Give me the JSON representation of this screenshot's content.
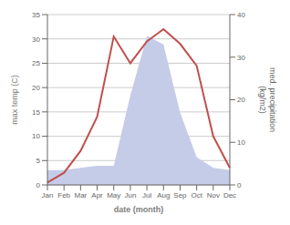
{
  "chart_data": {
    "type": "line",
    "categories": [
      "Jan",
      "Feb",
      "Mar",
      "Apr",
      "May",
      "Jun",
      "Jul",
      "Aug",
      "Sep",
      "Oct",
      "Nov",
      "Dec"
    ],
    "series": [
      {
        "type": "area",
        "axis": "y2",
        "color": "#c5cce8",
        "values": [
          3.5,
          3.5,
          4.0,
          4.5,
          4.5,
          21.0,
          35.0,
          33.0,
          17.0,
          6.5,
          4.0,
          3.5
        ]
      },
      {
        "type": "line",
        "color": "#c0504d",
        "values": [
          0.5,
          2.5,
          7.0,
          14.0,
          30.5,
          25.0,
          29.5,
          32.0,
          29.0,
          24.5,
          10.0,
          3.5
        ]
      }
    ],
    "xlabel": "date (month)",
    "ylabel": "max temp (C)",
    "y2label": "med. precipitation\n(kg/m2)",
    "ylim": [
      0,
      35
    ],
    "yticks": [
      0,
      5,
      10,
      15,
      20,
      25,
      30,
      35
    ],
    "y2lim": [
      0,
      40
    ],
    "y2ticks": [
      0,
      10,
      20,
      30,
      40
    ],
    "grid": true
  }
}
